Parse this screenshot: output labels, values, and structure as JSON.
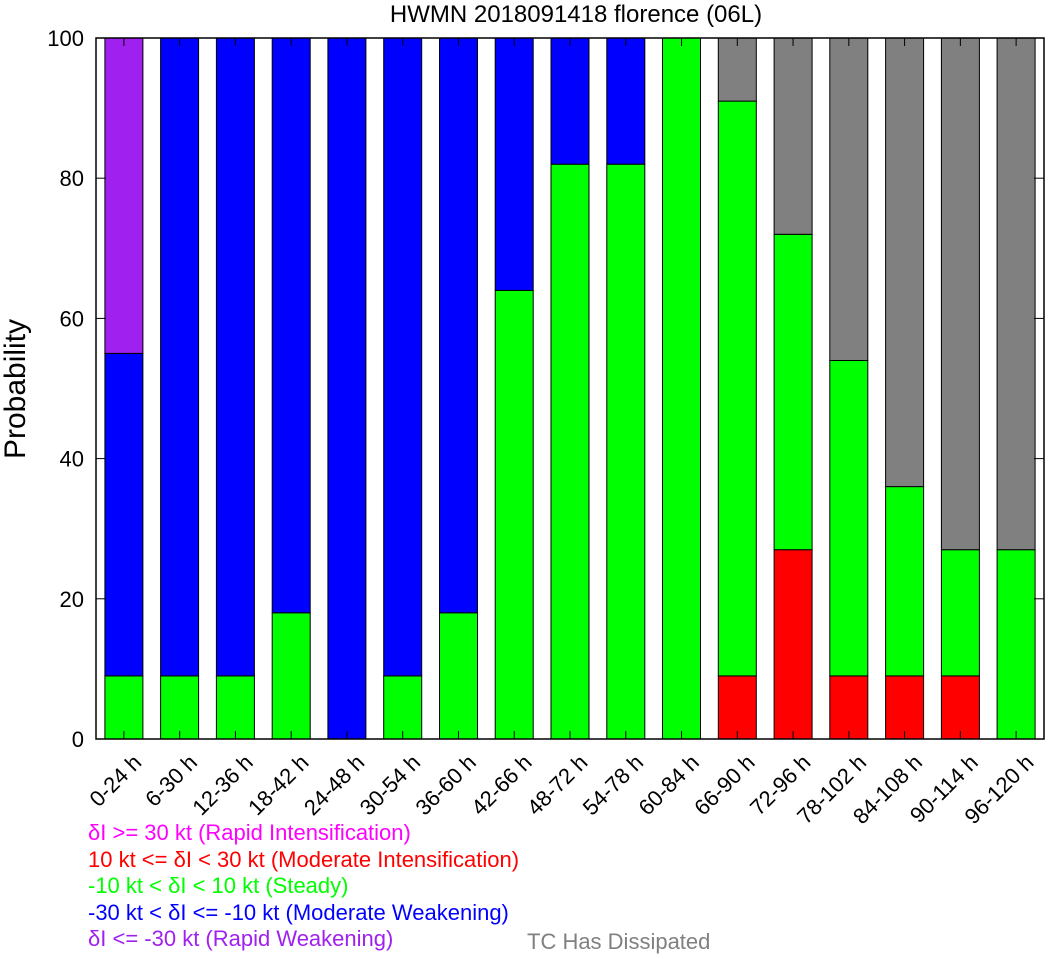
{
  "chart_data": {
    "type": "bar",
    "stacked": true,
    "title": "HWMN 2018091418 florence (06L)",
    "ylabel": "Probability",
    "xlabel": "",
    "ylim": [
      0,
      100
    ],
    "yticks": [
      0,
      20,
      40,
      60,
      80,
      100
    ],
    "categories": [
      "0-24 h",
      "6-30 h",
      "12-36 h",
      "18-42 h",
      "24-48 h",
      "30-54 h",
      "36-60 h",
      "42-66 h",
      "48-72 h",
      "54-78 h",
      "60-84 h",
      "66-90 h",
      "72-96 h",
      "78-102 h",
      "84-108 h",
      "90-114 h",
      "96-120 h"
    ],
    "series": [
      {
        "key": "rapid_intensification",
        "color": "#FF00FF",
        "values": [
          0,
          0,
          0,
          0,
          0,
          0,
          0,
          0,
          0,
          0,
          0,
          0,
          0,
          0,
          0,
          0,
          0
        ]
      },
      {
        "key": "moderate_intensification",
        "color": "#FF0000",
        "values": [
          0,
          0,
          0,
          0,
          0,
          0,
          0,
          0,
          0,
          0,
          0,
          9,
          27,
          9,
          9,
          9,
          0
        ]
      },
      {
        "key": "steady",
        "color": "#00FF00",
        "values": [
          9,
          9,
          9,
          18,
          0,
          9,
          18,
          64,
          82,
          82,
          100,
          82,
          45,
          45,
          27,
          18,
          27
        ]
      },
      {
        "key": "moderate_weakening",
        "color": "#0000FF",
        "values": [
          46,
          91,
          91,
          82,
          100,
          91,
          82,
          36,
          18,
          18,
          0,
          0,
          0,
          0,
          0,
          0,
          0
        ]
      },
      {
        "key": "rapid_weakening",
        "color": "#A020F0",
        "values": [
          45,
          0,
          0,
          0,
          0,
          0,
          0,
          0,
          0,
          0,
          0,
          0,
          0,
          0,
          0,
          0,
          0
        ]
      },
      {
        "key": "dissipated",
        "color": "#808080",
        "values": [
          0,
          0,
          0,
          0,
          0,
          0,
          0,
          0,
          0,
          0,
          0,
          9,
          28,
          46,
          64,
          73,
          73
        ]
      }
    ],
    "legend": [
      {
        "text": "δI >= 30 kt (Rapid Intensification)",
        "color": "#FF00FF"
      },
      {
        "text": "10 kt <= δI < 30 kt (Moderate Intensification)",
        "color": "#FF0000"
      },
      {
        "text": "-10 kt < δI < 10 kt (Steady)",
        "color": "#00FF00"
      },
      {
        "text": "-30 kt < δI <= -10 kt (Moderate Weakening)",
        "color": "#0000FF"
      },
      {
        "text": "δI <= -30 kt (Rapid Weakening)",
        "color": "#A020F0"
      }
    ],
    "dissipated_label": {
      "text": "TC Has Dissipated",
      "color": "#808080"
    },
    "legend_placement": "bottom-left",
    "grid": false
  }
}
